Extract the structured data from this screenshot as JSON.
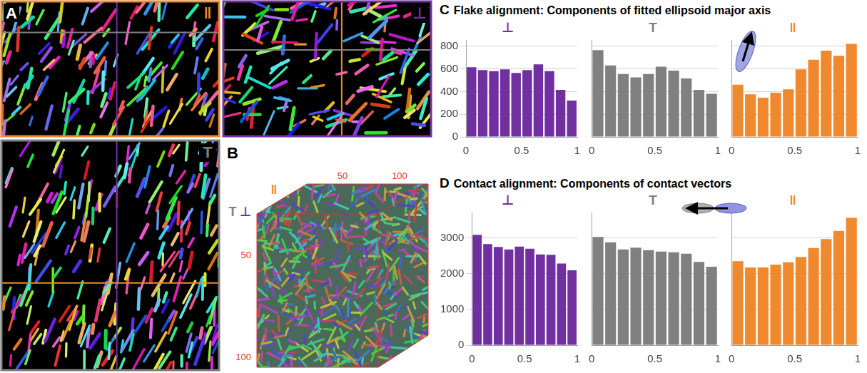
{
  "figure": {
    "A": {
      "letter": "A",
      "views": [
        {
          "label": "‖",
          "color": "#f0892e"
        },
        {
          "label": "⊥",
          "color": "#7030a0"
        },
        {
          "label": "T",
          "color": "#808080"
        }
      ]
    },
    "B": {
      "letter": "B",
      "axis_labels": [
        {
          "label": "‖",
          "color": "#f0892e"
        },
        {
          "label": "T",
          "color": "#808080"
        },
        {
          "label": "⊥",
          "color": "#7030a0"
        }
      ],
      "top_ticks": [
        50,
        100
      ],
      "side_ticks": [
        50,
        100
      ]
    },
    "C": {
      "letter": "C",
      "title": "Flake alignment: Components of fitted ellipsoid major axis"
    },
    "D": {
      "letter": "D",
      "title": "Contact alignment: Components of contact vectors"
    }
  },
  "chart_data": [
    {
      "type": "histogram",
      "panel": "C",
      "title": "⊥",
      "color": "#7030a0",
      "bins": [
        0,
        0.1,
        0.2,
        0.3,
        0.4,
        0.5,
        0.6,
        0.7,
        0.8,
        0.9,
        1
      ],
      "values": [
        615,
        590,
        580,
        595,
        565,
        590,
        640,
        580,
        415,
        320
      ],
      "xlim": [
        0,
        1
      ],
      "xticks": [
        0,
        0.5,
        1
      ],
      "ylim": [
        0,
        850
      ],
      "yticks": [
        0,
        200,
        400,
        600,
        800
      ],
      "grid": true
    },
    {
      "type": "histogram",
      "panel": "C",
      "title": "T",
      "color": "#808080",
      "bins": [
        0,
        0.1,
        0.2,
        0.3,
        0.4,
        0.5,
        0.6,
        0.7,
        0.8,
        0.9,
        1
      ],
      "values": [
        765,
        630,
        555,
        525,
        555,
        620,
        585,
        515,
        415,
        380
      ],
      "xlim": [
        0,
        1
      ],
      "xticks": [
        0,
        0.5,
        1
      ],
      "ylim": [
        0,
        850
      ],
      "yticks": [
        0,
        200,
        400,
        600,
        800
      ],
      "grid": true,
      "tick_labels": "x"
    },
    {
      "type": "histogram",
      "panel": "C",
      "title": "‖",
      "color": "#f0892e",
      "bins": [
        0,
        0.1,
        0.2,
        0.3,
        0.4,
        0.5,
        0.6,
        0.7,
        0.8,
        0.9,
        1
      ],
      "values": [
        460,
        375,
        345,
        390,
        420,
        595,
        680,
        760,
        715,
        820
      ],
      "xlim": [
        0,
        1
      ],
      "xticks": [
        0,
        0.5,
        1
      ],
      "ylim": [
        0,
        850
      ],
      "yticks": [
        0,
        200,
        400,
        600,
        800
      ],
      "grid": true,
      "tick_labels": "x"
    },
    {
      "type": "histogram",
      "panel": "D",
      "title": "⊥",
      "color": "#7030a0",
      "bins": [
        0,
        0.1,
        0.2,
        0.3,
        0.4,
        0.5,
        0.6,
        0.7,
        0.8,
        0.9,
        1
      ],
      "values": [
        3090,
        2830,
        2750,
        2680,
        2760,
        2700,
        2540,
        2530,
        2290,
        2100
      ],
      "xlim": [
        0,
        1
      ],
      "xticks": [
        0,
        0.5,
        1
      ],
      "ylim": [
        0,
        3700
      ],
      "yticks": [
        0,
        1000,
        2000,
        3000
      ],
      "grid": true
    },
    {
      "type": "histogram",
      "panel": "D",
      "title": "T",
      "color": "#808080",
      "bins": [
        0,
        0.1,
        0.2,
        0.3,
        0.4,
        0.5,
        0.6,
        0.7,
        0.8,
        0.9,
        1
      ],
      "values": [
        3030,
        2880,
        2680,
        2730,
        2660,
        2620,
        2600,
        2560,
        2330,
        2200
      ],
      "xlim": [
        0,
        1
      ],
      "xticks": [
        0,
        0.5,
        1
      ],
      "ylim": [
        0,
        3700
      ],
      "yticks": [
        0,
        1000,
        2000,
        3000
      ],
      "grid": true,
      "tick_labels": "x"
    },
    {
      "type": "histogram",
      "panel": "D",
      "title": "‖",
      "color": "#f0892e",
      "bins": [
        0,
        0.1,
        0.2,
        0.3,
        0.4,
        0.5,
        0.6,
        0.7,
        0.8,
        0.9,
        1
      ],
      "values": [
        2350,
        2180,
        2180,
        2260,
        2320,
        2470,
        2720,
        2970,
        3200,
        3570
      ],
      "xlim": [
        0,
        1
      ],
      "xticks": [
        0,
        0.5,
        1
      ],
      "ylim": [
        0,
        3700
      ],
      "yticks": [
        0,
        1000,
        2000,
        3000
      ],
      "grid": true,
      "tick_labels": "x"
    }
  ]
}
